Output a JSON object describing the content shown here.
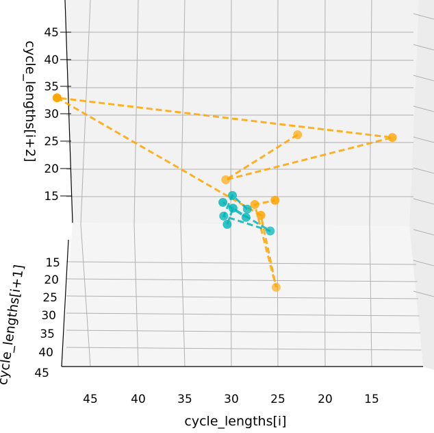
{
  "chart_data": {
    "type": "scatter",
    "projection": "3d",
    "xlabel": "cycle_lengths[i]",
    "ylabel": "cycle_lengths[i+1]",
    "zlabel": "cycle_lengths[i+2]",
    "x_ticks": [
      "45",
      "40",
      "35",
      "30",
      "25",
      "20",
      "15"
    ],
    "y_ticks": [
      "15",
      "20",
      "25",
      "30",
      "35",
      "40",
      "45"
    ],
    "z_ticks": [
      "15",
      "20",
      "25",
      "30",
      "35",
      "40",
      "45"
    ],
    "grid": true,
    "series": [
      {
        "color": "#ffa500",
        "line_style": "dashed",
        "points": [
          {
            "x": 23,
            "y": 33,
            "z": 42
          },
          {
            "x": 31.5,
            "y": 34,
            "z": 35
          },
          {
            "x": 12,
            "y": 26,
            "z": 36
          },
          {
            "x": 46,
            "y": 16,
            "z": 35
          },
          {
            "x": 27,
            "y": 24,
            "z": 21
          },
          {
            "x": 28,
            "y": 36,
            "z": 18
          },
          {
            "x": 28,
            "y": 28,
            "z": 26
          },
          {
            "x": 25,
            "y": 22,
            "z": 22
          }
        ]
      },
      {
        "color": "#00b5b8",
        "line_style": "dashed",
        "points": [
          {
            "x": 29,
            "y": 29,
            "z": 26
          },
          {
            "x": 30,
            "y": 26,
            "z": 26
          },
          {
            "x": 31.5,
            "y": 28,
            "z": 24
          },
          {
            "x": 27,
            "y": 30,
            "z": 23
          },
          {
            "x": 31,
            "y": 25,
            "z": 24
          },
          {
            "x": 29,
            "y": 27,
            "z": 23
          },
          {
            "x": 30,
            "y": 25,
            "z": 23
          },
          {
            "x": 31,
            "y": 26,
            "z": 21
          }
        ]
      }
    ]
  }
}
